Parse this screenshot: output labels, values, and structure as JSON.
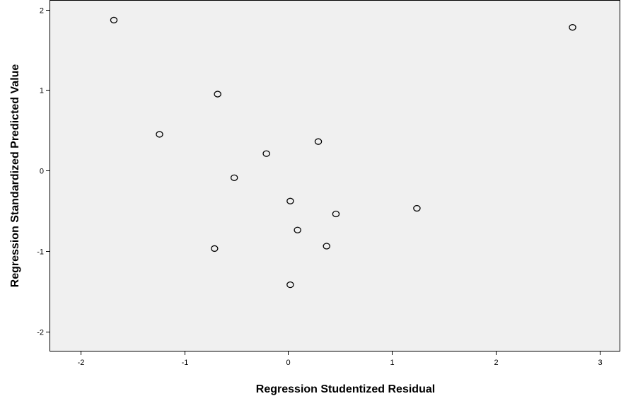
{
  "chart_data": {
    "type": "scatter",
    "title": "",
    "xlabel": "Regression Studentized Residual",
    "ylabel": "Regression Standardized Predicted Value",
    "xlim": [
      -2.3,
      3.2
    ],
    "ylim": [
      -2.25,
      2.12
    ],
    "xticks": [
      -2,
      -1,
      0,
      1,
      2,
      3
    ],
    "yticks": [
      2,
      1,
      0,
      -1,
      -2
    ],
    "xtick_labels": [
      "-2",
      "-1",
      "0",
      "1",
      "2",
      "3"
    ],
    "ytick_labels": [
      "2",
      "1",
      "0",
      "-1",
      "-2"
    ],
    "grid": false,
    "legend": false,
    "background_color": "#f0f0f0",
    "marker": "hollow-circle",
    "marker_color": "#000000",
    "points": [
      {
        "x": -1.68,
        "y": 1.87
      },
      {
        "x": 2.74,
        "y": 1.78
      },
      {
        "x": -0.68,
        "y": 0.95
      },
      {
        "x": -1.24,
        "y": 0.45
      },
      {
        "x": 0.29,
        "y": 0.36
      },
      {
        "x": -0.21,
        "y": 0.21
      },
      {
        "x": -0.52,
        "y": -0.09
      },
      {
        "x": 0.02,
        "y": -0.38
      },
      {
        "x": 1.24,
        "y": -0.47
      },
      {
        "x": 0.46,
        "y": -0.54
      },
      {
        "x": 0.09,
        "y": -0.74
      },
      {
        "x": -0.71,
        "y": -0.97
      },
      {
        "x": 0.37,
        "y": -0.94
      },
      {
        "x": 0.02,
        "y": -1.42
      }
    ]
  }
}
